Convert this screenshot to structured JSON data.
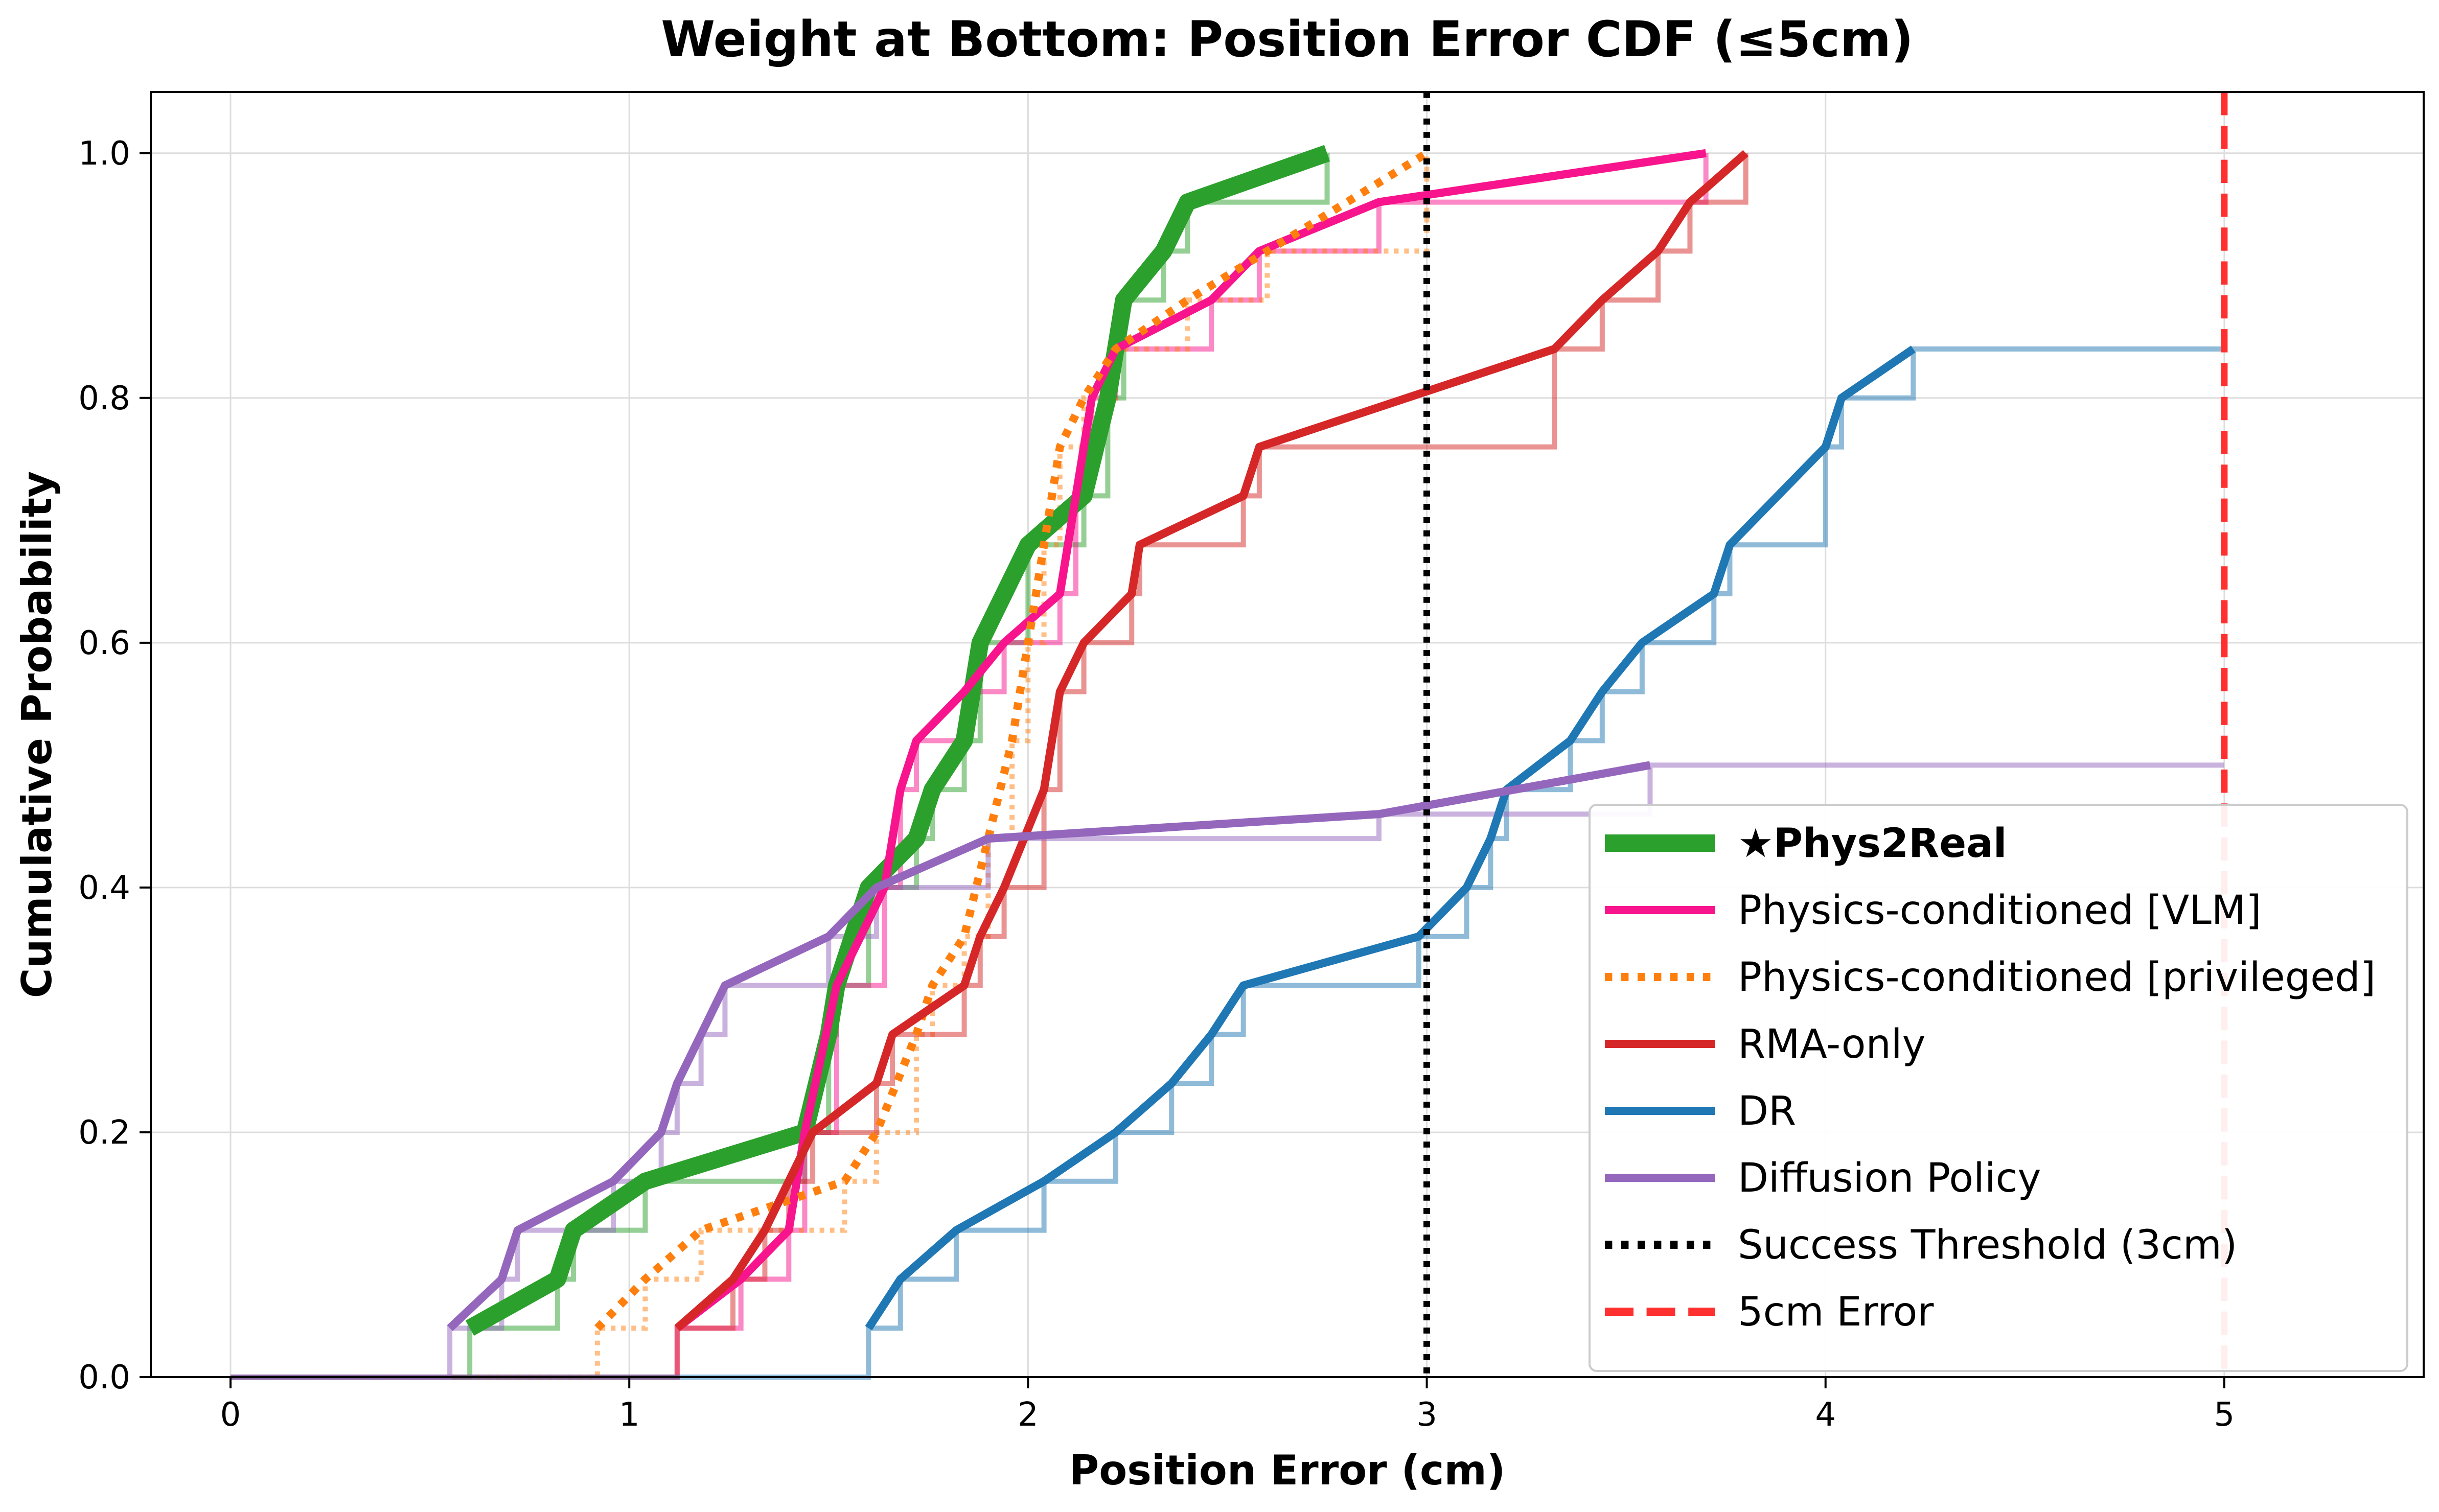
{
  "chart_data": {
    "type": "line",
    "title": "Weight at Bottom: Position Error CDF (≤5cm)",
    "xlabel": "Position Error (cm)",
    "ylabel": "Cumulative Probability",
    "xlim": [
      -0.2,
      5.5
    ],
    "ylim": [
      0.0,
      1.05
    ],
    "x_ticks": [
      0,
      1,
      2,
      3,
      4,
      5
    ],
    "x_tick_labels": [
      "0",
      "1",
      "2",
      "3",
      "4",
      "5"
    ],
    "y_ticks": [
      0.0,
      0.2,
      0.4,
      0.6,
      0.8,
      1.0
    ],
    "y_tick_labels": [
      "0.0",
      "0.2",
      "0.4",
      "0.6",
      "0.8",
      "1.0"
    ],
    "grid": true,
    "legend_position": "lower-right",
    "series": [
      {
        "name": "★Phys2Real",
        "color": "#2ca02c",
        "style": "solid",
        "emphasis": true,
        "points": [
          [
            0.6,
            0.04
          ],
          [
            0.82,
            0.08
          ],
          [
            0.86,
            0.12
          ],
          [
            1.04,
            0.16
          ],
          [
            1.44,
            0.2
          ],
          [
            1.5,
            0.28
          ],
          [
            1.52,
            0.32
          ],
          [
            1.6,
            0.4
          ],
          [
            1.72,
            0.44
          ],
          [
            1.76,
            0.48
          ],
          [
            1.84,
            0.52
          ],
          [
            1.88,
            0.6
          ],
          [
            2.0,
            0.68
          ],
          [
            2.14,
            0.72
          ],
          [
            2.2,
            0.8
          ],
          [
            2.24,
            0.88
          ],
          [
            2.34,
            0.92
          ],
          [
            2.4,
            0.96
          ],
          [
            2.75,
            1.0
          ]
        ]
      },
      {
        "name": "Physics-conditioned [VLM]",
        "color": "#f7148c",
        "style": "solid",
        "points": [
          [
            1.12,
            0.04
          ],
          [
            1.28,
            0.08
          ],
          [
            1.4,
            0.12
          ],
          [
            1.44,
            0.2
          ],
          [
            1.52,
            0.32
          ],
          [
            1.64,
            0.4
          ],
          [
            1.68,
            0.48
          ],
          [
            1.72,
            0.52
          ],
          [
            1.84,
            0.56
          ],
          [
            1.94,
            0.6
          ],
          [
            2.08,
            0.64
          ],
          [
            2.12,
            0.72
          ],
          [
            2.14,
            0.76
          ],
          [
            2.16,
            0.8
          ],
          [
            2.22,
            0.84
          ],
          [
            2.46,
            0.88
          ],
          [
            2.58,
            0.92
          ],
          [
            2.88,
            0.96
          ],
          [
            3.7,
            1.0
          ]
        ]
      },
      {
        "name": "Physics-conditioned [privileged]",
        "color": "#ff7f0e",
        "style": "dotted",
        "points": [
          [
            0.92,
            0.04
          ],
          [
            1.04,
            0.08
          ],
          [
            1.18,
            0.12
          ],
          [
            1.54,
            0.16
          ],
          [
            1.62,
            0.2
          ],
          [
            1.72,
            0.28
          ],
          [
            1.76,
            0.32
          ],
          [
            1.84,
            0.36
          ],
          [
            1.9,
            0.44
          ],
          [
            1.96,
            0.52
          ],
          [
            2.0,
            0.6
          ],
          [
            2.04,
            0.68
          ],
          [
            2.08,
            0.76
          ],
          [
            2.14,
            0.8
          ],
          [
            2.22,
            0.84
          ],
          [
            2.4,
            0.88
          ],
          [
            2.6,
            0.92
          ],
          [
            3.0,
            1.0
          ]
        ]
      },
      {
        "name": "RMA-only",
        "color": "#d62728",
        "style": "solid",
        "points": [
          [
            1.12,
            0.04
          ],
          [
            1.26,
            0.08
          ],
          [
            1.34,
            0.12
          ],
          [
            1.4,
            0.16
          ],
          [
            1.46,
            0.2
          ],
          [
            1.62,
            0.24
          ],
          [
            1.66,
            0.28
          ],
          [
            1.84,
            0.32
          ],
          [
            1.88,
            0.36
          ],
          [
            1.94,
            0.4
          ],
          [
            2.04,
            0.48
          ],
          [
            2.08,
            0.56
          ],
          [
            2.14,
            0.6
          ],
          [
            2.26,
            0.64
          ],
          [
            2.28,
            0.68
          ],
          [
            2.54,
            0.72
          ],
          [
            2.58,
            0.76
          ],
          [
            3.32,
            0.84
          ],
          [
            3.44,
            0.88
          ],
          [
            3.58,
            0.92
          ],
          [
            3.66,
            0.96
          ],
          [
            3.8,
            1.0
          ]
        ]
      },
      {
        "name": "DR",
        "color": "#1f77b4",
        "style": "solid",
        "points": [
          [
            1.6,
            0.04
          ],
          [
            1.68,
            0.08
          ],
          [
            1.82,
            0.12
          ],
          [
            2.04,
            0.16
          ],
          [
            2.22,
            0.2
          ],
          [
            2.36,
            0.24
          ],
          [
            2.46,
            0.28
          ],
          [
            2.54,
            0.32
          ],
          [
            2.98,
            0.36
          ],
          [
            3.1,
            0.4
          ],
          [
            3.16,
            0.44
          ],
          [
            3.2,
            0.48
          ],
          [
            3.36,
            0.52
          ],
          [
            3.44,
            0.56
          ],
          [
            3.54,
            0.6
          ],
          [
            3.72,
            0.64
          ],
          [
            3.76,
            0.68
          ],
          [
            4.0,
            0.76
          ],
          [
            4.04,
            0.8
          ],
          [
            4.22,
            0.84
          ]
        ]
      },
      {
        "name": "Diffusion Policy",
        "color": "#9467bd",
        "style": "solid",
        "points": [
          [
            0.55,
            0.04
          ],
          [
            0.68,
            0.08
          ],
          [
            0.72,
            0.12
          ],
          [
            0.96,
            0.16
          ],
          [
            1.08,
            0.2
          ],
          [
            1.12,
            0.24
          ],
          [
            1.18,
            0.28
          ],
          [
            1.24,
            0.32
          ],
          [
            1.5,
            0.36
          ],
          [
            1.62,
            0.4
          ],
          [
            1.9,
            0.44
          ],
          [
            2.88,
            0.46
          ],
          [
            3.56,
            0.5
          ]
        ]
      }
    ],
    "step_segments_x_end": {
      "★Phys2Real": 2.75,
      "Physics-conditioned [VLM]": 3.7,
      "Physics-conditioned [privileged]": 3.0,
      "RMA-only": 3.8,
      "DR": 5.0,
      "Diffusion Policy": 5.0
    },
    "reference_lines": [
      {
        "name": "Success Threshold (3cm)",
        "x": 3,
        "color": "#000000",
        "style": "dotted"
      },
      {
        "name": "5cm Error",
        "x": 5,
        "color": "#ff3030",
        "style": "dashed"
      }
    ]
  }
}
